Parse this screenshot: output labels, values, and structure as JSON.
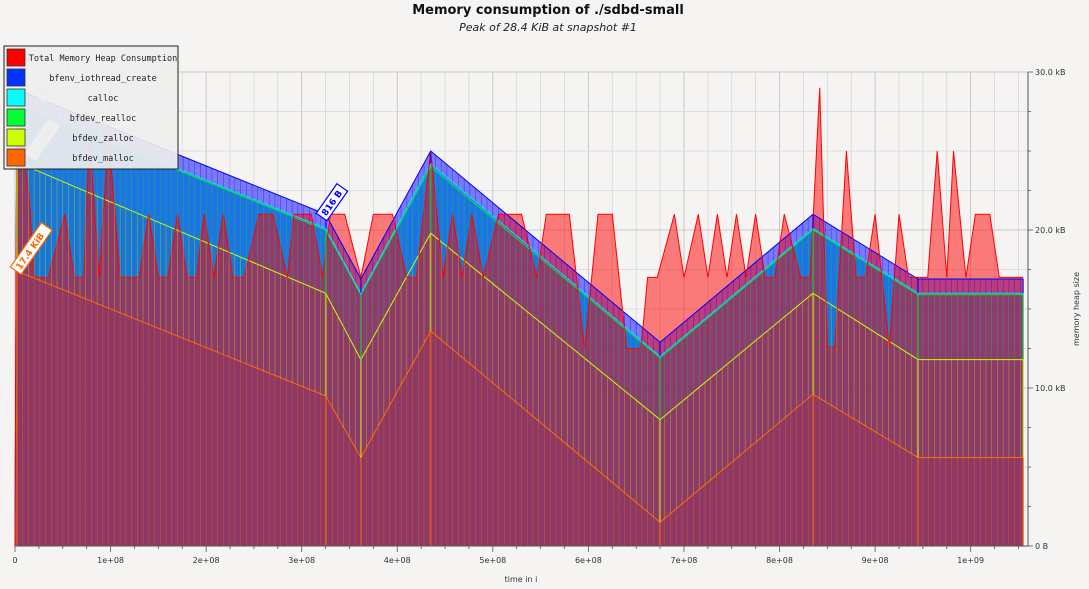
{
  "chart_data": {
    "type": "area",
    "title": "Memory consumption of ./sdbd-small",
    "subtitle": "Peak of 28.4 KiB at snapshot #1",
    "xlabel": "time in i",
    "ylabel": "memory heap size",
    "xlim": [
      0,
      1060000000
    ],
    "ylim": [
      0,
      30
    ],
    "x_ticks": [
      {
        "value": 0,
        "label": "0"
      },
      {
        "value": 100000000,
        "label": "1e+08"
      },
      {
        "value": 200000000,
        "label": "2e+08"
      },
      {
        "value": 300000000,
        "label": "3e+08"
      },
      {
        "value": 400000000,
        "label": "4e+08"
      },
      {
        "value": 500000000,
        "label": "5e+08"
      },
      {
        "value": 600000000,
        "label": "6e+08"
      },
      {
        "value": 700000000,
        "label": "7e+08"
      },
      {
        "value": 800000000,
        "label": "8e+08"
      },
      {
        "value": 900000000,
        "label": "9e+08"
      },
      {
        "value": 1000000000,
        "label": "1e+09"
      }
    ],
    "y_ticks": [
      {
        "value": 0,
        "label": "0 B"
      },
      {
        "value": 10,
        "label": "10.0 kB"
      },
      {
        "value": 20,
        "label": "20.0 kB"
      },
      {
        "value": 30,
        "label": "30.0 kB"
      }
    ],
    "grid": true,
    "legend_position": "top-left",
    "series": [
      {
        "name": "bfdev_malloc",
        "color": "#ff6a00",
        "points": [
          [
            0,
            0
          ],
          [
            2000000,
            17.4
          ],
          [
            325000000,
            9.5
          ],
          [
            362000000,
            5.6
          ],
          [
            435000000,
            13.6
          ],
          [
            675000000,
            1.5
          ],
          [
            835000000,
            9.6
          ],
          [
            945000000,
            5.6
          ],
          [
            1055000000,
            5.6
          ]
        ]
      },
      {
        "name": "bfdev_zalloc",
        "color": "#c8ff00",
        "points": [
          [
            0,
            0
          ],
          [
            2000000,
            24.3
          ],
          [
            325000000,
            16.0
          ],
          [
            362000000,
            11.8
          ],
          [
            435000000,
            19.8
          ],
          [
            675000000,
            8.0
          ],
          [
            835000000,
            16.0
          ],
          [
            945000000,
            11.8
          ],
          [
            1055000000,
            11.8
          ]
        ]
      },
      {
        "name": "bfdev_realloc",
        "color": "#00e62a",
        "points": [
          [
            0,
            0
          ],
          [
            2000000,
            27.9
          ],
          [
            325000000,
            20.0
          ],
          [
            362000000,
            15.9
          ],
          [
            435000000,
            24.0
          ],
          [
            675000000,
            11.9
          ],
          [
            835000000,
            20.0
          ],
          [
            945000000,
            15.9
          ],
          [
            1055000000,
            15.9
          ]
        ]
      },
      {
        "name": "calloc",
        "color": "#00e5ff",
        "points": [
          [
            0,
            0
          ],
          [
            2000000,
            28.0
          ],
          [
            325000000,
            20.1
          ],
          [
            362000000,
            16.0
          ],
          [
            435000000,
            24.2
          ],
          [
            675000000,
            12.0
          ],
          [
            835000000,
            20.1
          ],
          [
            945000000,
            16.0
          ],
          [
            1055000000,
            16.0
          ]
        ]
      },
      {
        "name": "bfenv_iothread_create",
        "color": "#0000ff",
        "points": [
          [
            0,
            0
          ],
          [
            2000000,
            28.9
          ],
          [
            325000000,
            21.0
          ],
          [
            362000000,
            16.9
          ],
          [
            435000000,
            25.0
          ],
          [
            675000000,
            12.9
          ],
          [
            835000000,
            21.0
          ],
          [
            945000000,
            16.9
          ],
          [
            1055000000,
            16.9
          ]
        ]
      },
      {
        "name": "Total Memory Heap Consumption",
        "color": "#ff0000",
        "points": [
          [
            0,
            0
          ],
          [
            2000000,
            28.4
          ],
          [
            15000000,
            22
          ],
          [
            20000000,
            17
          ],
          [
            35000000,
            17
          ],
          [
            52000000,
            21
          ],
          [
            62000000,
            17
          ],
          [
            72000000,
            17
          ],
          [
            78000000,
            26
          ],
          [
            88000000,
            17
          ],
          [
            98000000,
            26
          ],
          [
            110000000,
            17
          ],
          [
            130000000,
            17
          ],
          [
            140000000,
            21
          ],
          [
            150000000,
            17
          ],
          [
            160000000,
            17
          ],
          [
            170000000,
            21
          ],
          [
            180000000,
            17
          ],
          [
            190000000,
            17
          ],
          [
            198000000,
            21
          ],
          [
            208000000,
            17
          ],
          [
            218000000,
            21
          ],
          [
            228000000,
            17
          ],
          [
            240000000,
            17
          ],
          [
            255000000,
            21
          ],
          [
            270000000,
            21
          ],
          [
            285000000,
            17
          ],
          [
            292000000,
            21
          ],
          [
            310000000,
            21
          ],
          [
            322000000,
            17
          ],
          [
            330000000,
            21
          ],
          [
            345000000,
            21
          ],
          [
            362000000,
            17
          ],
          [
            375000000,
            21
          ],
          [
            395000000,
            21
          ],
          [
            410000000,
            17
          ],
          [
            420000000,
            17
          ],
          [
            435000000,
            25
          ],
          [
            448000000,
            17
          ],
          [
            458000000,
            21
          ],
          [
            468000000,
            17
          ],
          [
            478000000,
            21
          ],
          [
            490000000,
            17
          ],
          [
            506000000,
            21
          ],
          [
            530000000,
            21
          ],
          [
            546000000,
            17
          ],
          [
            556000000,
            21
          ],
          [
            580000000,
            21
          ],
          [
            596000000,
            12.5
          ],
          [
            610000000,
            21
          ],
          [
            625000000,
            21
          ],
          [
            640000000,
            12.5
          ],
          [
            655000000,
            12.5
          ],
          [
            662000000,
            17
          ],
          [
            672000000,
            17
          ],
          [
            690000000,
            21
          ],
          [
            700000000,
            17
          ],
          [
            715000000,
            21
          ],
          [
            725000000,
            17
          ],
          [
            735000000,
            21
          ],
          [
            745000000,
            17
          ],
          [
            755000000,
            21
          ],
          [
            765000000,
            17
          ],
          [
            775000000,
            21
          ],
          [
            785000000,
            17
          ],
          [
            795000000,
            17
          ],
          [
            805000000,
            21
          ],
          [
            822000000,
            17
          ],
          [
            832000000,
            17
          ],
          [
            842000000,
            29
          ],
          [
            850000000,
            12.6
          ],
          [
            858000000,
            12.6
          ],
          [
            870000000,
            25
          ],
          [
            880000000,
            17
          ],
          [
            890000000,
            17
          ],
          [
            900000000,
            21
          ],
          [
            915000000,
            12.6
          ],
          [
            925000000,
            21
          ],
          [
            935000000,
            17
          ],
          [
            945000000,
            17
          ],
          [
            955000000,
            17
          ],
          [
            965000000,
            25
          ],
          [
            975000000,
            17
          ],
          [
            982000000,
            25
          ],
          [
            995000000,
            17
          ],
          [
            1005000000,
            21
          ],
          [
            1020000000,
            21
          ],
          [
            1030000000,
            17
          ],
          [
            1055000000,
            17
          ]
        ]
      }
    ],
    "legend": [
      {
        "label": "Total Memory Heap Consumption",
        "color": "#ff0000"
      },
      {
        "label": "bfenv_iothread_create",
        "color": "#0033ff"
      },
      {
        "label": "calloc",
        "color": "#00ffff"
      },
      {
        "label": "bfdev_realloc",
        "color": "#00ff33"
      },
      {
        "label": "bfdev_zalloc",
        "color": "#ccff00"
      },
      {
        "label": "bfdev_malloc",
        "color": "#ff6600"
      }
    ],
    "annotations": [
      {
        "text": "17.4 KiB",
        "x": 5000000,
        "y": 17.4,
        "color": "#ff6600"
      },
      {
        "text": "816 B",
        "x": 325000000,
        "y": 20.8,
        "color": "#0000ff"
      },
      {
        "text": "12 KiB",
        "x": 20000000,
        "y": 24.6,
        "color": "#c8c8c8"
      },
      {
        "text": "10 KiB",
        "x": 30000000,
        "y": 28.3,
        "color": "#c8c8c8"
      }
    ]
  }
}
